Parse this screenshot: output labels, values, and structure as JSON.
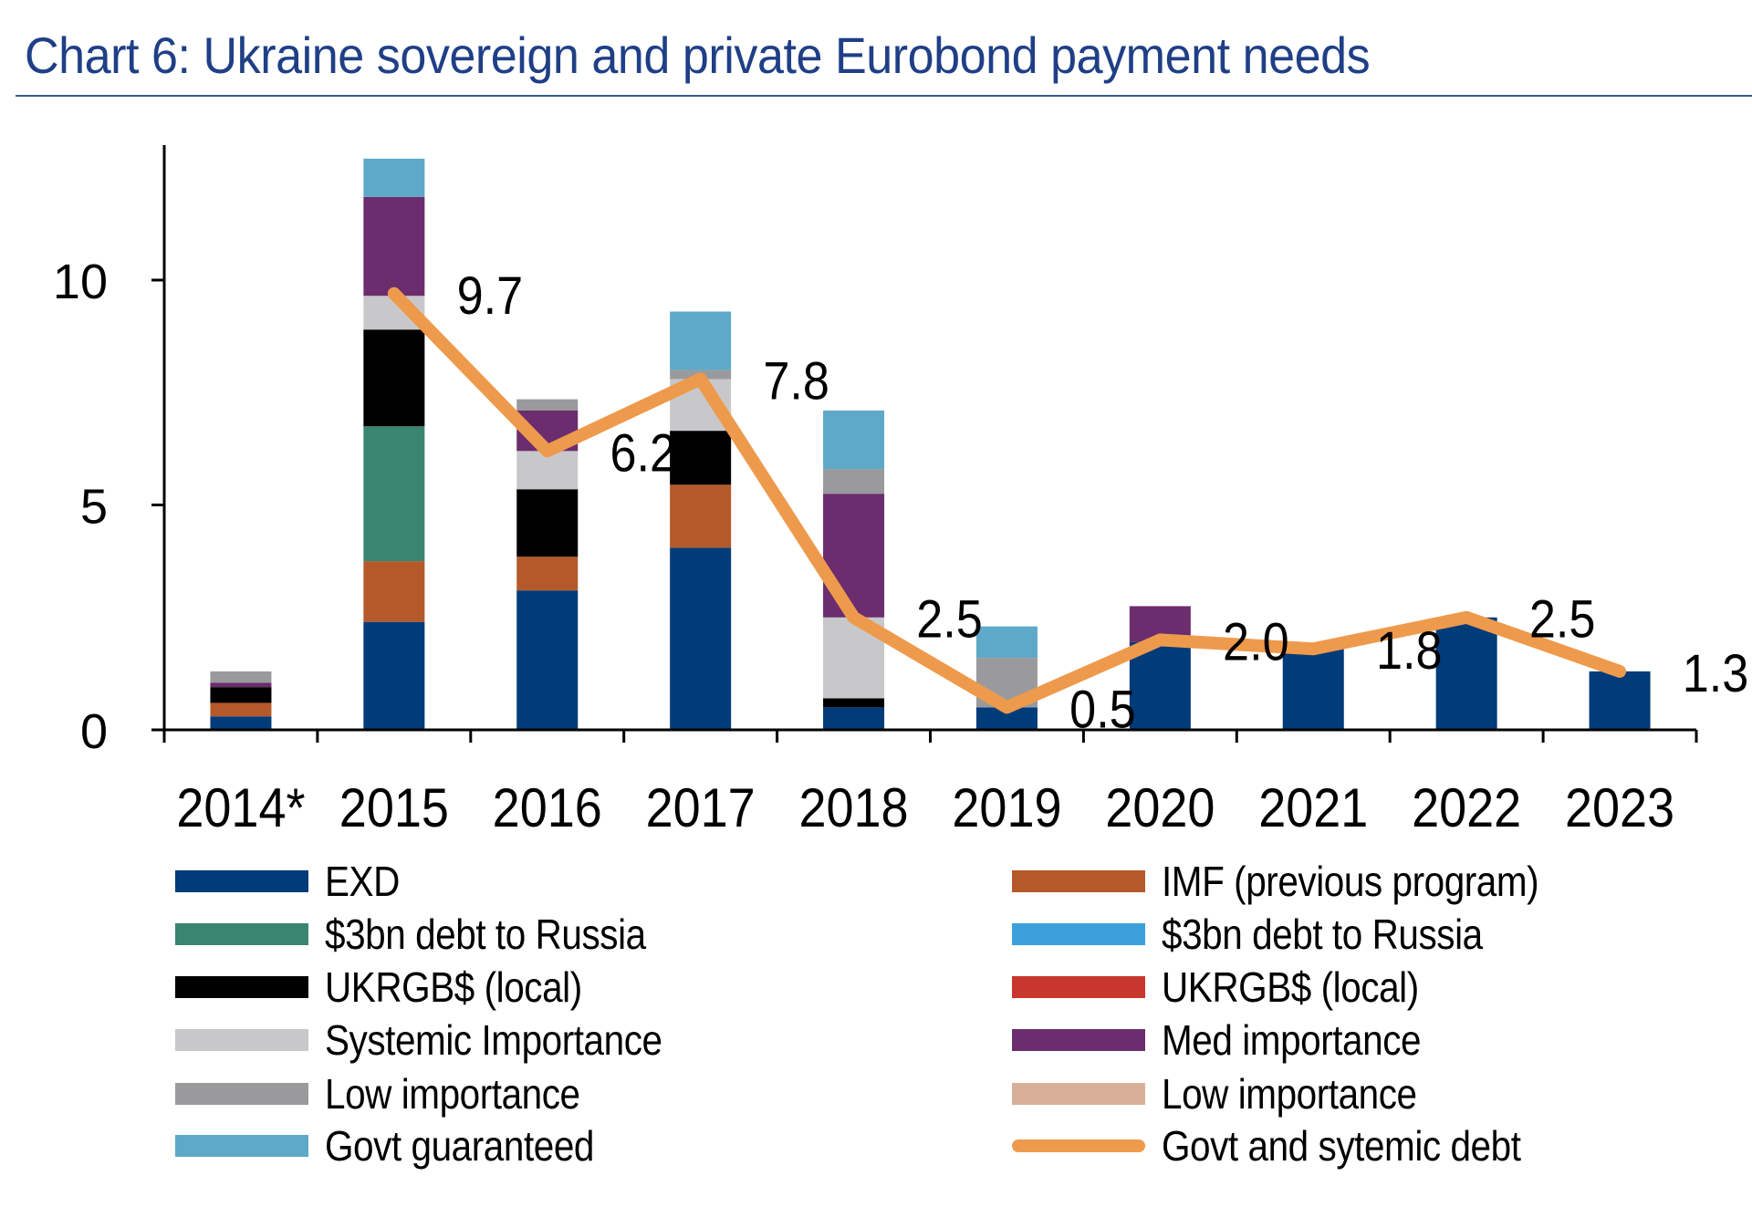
{
  "chart_data": {
    "type": "bar",
    "title": "Chart 6: Ukraine sovereign and private Eurobond payment needs",
    "categories": [
      "2014*",
      "2015",
      "2016",
      "2017",
      "2018",
      "2019",
      "2020",
      "2021",
      "2022",
      "2023"
    ],
    "ylim": [
      0,
      12.9
    ],
    "yticks": [
      "0",
      "5",
      "10"
    ],
    "ytick_values": [
      0,
      5,
      10
    ],
    "stacked": true,
    "grid": false,
    "legend_position": "bottom",
    "series": [
      {
        "name": "EXD",
        "color": "#003B7A",
        "values": [
          0.3,
          2.4,
          3.1,
          4.05,
          0.5,
          0.5,
          1.95,
          1.8,
          2.5,
          1.3
        ]
      },
      {
        "name": "IMF (previous program)",
        "color": "#B5592A",
        "values": [
          0.3,
          1.35,
          0.75,
          1.4,
          0,
          0,
          0,
          0,
          0,
          0
        ]
      },
      {
        "name": "$3bn debt to Russia",
        "color": "#3A8572",
        "values": [
          0,
          3.0,
          0,
          0,
          0,
          0,
          0,
          0,
          0,
          0
        ]
      },
      {
        "name": "UKRGB$ (local)",
        "color": "#000000",
        "values": [
          0.35,
          2.15,
          1.5,
          1.2,
          0.2,
          0,
          0,
          0,
          0,
          0
        ]
      },
      {
        "name": "Systemic Importance",
        "color": "#C8C8CA",
        "values": [
          0,
          0.75,
          0.85,
          1.15,
          1.8,
          0,
          0,
          0,
          0,
          0
        ]
      },
      {
        "name": "Med importance",
        "color": "#6B2D6E",
        "values": [
          0.1,
          2.2,
          0.9,
          0,
          2.75,
          0,
          0.8,
          0,
          0,
          0
        ]
      },
      {
        "name": "Low importance",
        "color": "#9A9A9C",
        "values": [
          0.25,
          0,
          0.25,
          0.2,
          0.55,
          1.1,
          0,
          0,
          0,
          0
        ]
      },
      {
        "name": "Govt guaranteed",
        "color": "#5FA9C8",
        "values": [
          0,
          0.85,
          0,
          1.3,
          1.3,
          0.7,
          0,
          0,
          0,
          0
        ]
      }
    ],
    "line": {
      "name": "Govt and sytemic debt",
      "color": "#EE9A4C",
      "x": [
        "2015",
        "2016",
        "2017",
        "2018",
        "2019",
        "2020",
        "2021",
        "2022",
        "2023"
      ],
      "values": [
        9.7,
        6.2,
        7.8,
        2.5,
        0.5,
        2.0,
        1.8,
        2.5,
        1.3
      ],
      "labels": [
        "9.7",
        "6.2",
        "7.8",
        "2.5",
        "0.5",
        "2.0",
        "1.8",
        "2.5",
        "1.3"
      ]
    }
  },
  "legend": [
    {
      "label": "EXD",
      "color": "#003B7A",
      "kind": "box"
    },
    {
      "label": "IMF (previous program)",
      "color": "#B5592A",
      "kind": "box"
    },
    {
      "label": "$3bn debt to Russia",
      "color": "#3A8572",
      "kind": "box"
    },
    {
      "label": "$3bn debt to Russia",
      "color": "#3DA0DB",
      "kind": "box"
    },
    {
      "label": "UKRGB$ (local)",
      "color": "#000000",
      "kind": "box"
    },
    {
      "label": "UKRGB$ (local)",
      "color": "#C8362D",
      "kind": "box"
    },
    {
      "label": "Systemic Importance",
      "color": "#C8C8CA",
      "kind": "box"
    },
    {
      "label": "Med importance",
      "color": "#6B2D6E",
      "kind": "box"
    },
    {
      "label": "Low importance",
      "color": "#9A9A9C",
      "kind": "box"
    },
    {
      "label": "Low importance",
      "color": "#D8B09A",
      "kind": "box"
    },
    {
      "label": "Govt guaranteed",
      "color": "#5FA9C8",
      "kind": "box"
    },
    {
      "label": "Govt and sytemic debt",
      "color": "#EE9A4C",
      "kind": "line"
    }
  ]
}
